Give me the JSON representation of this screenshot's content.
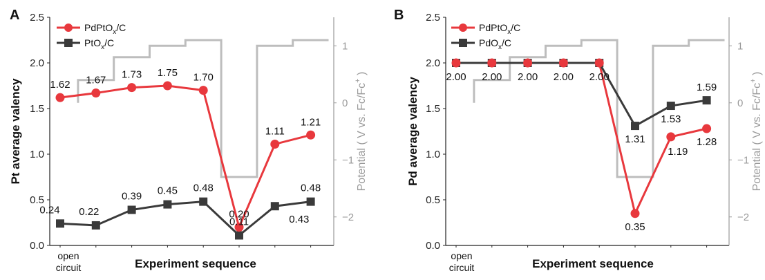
{
  "chart_data": [
    {
      "panel": "A",
      "type": "line",
      "xlabel": "Experiment sequence",
      "x_start_label": [
        "open",
        "circuit"
      ],
      "ylabel": "Pt average valency",
      "ylim": [
        0.0,
        2.5
      ],
      "yticks": [
        "0.0",
        "0.5",
        "1.0",
        "1.5",
        "2.0",
        "2.5"
      ],
      "y2label": "Potential ( V vs. Fc/Fc",
      "y2label_sup": "+",
      "y2label_end": ")",
      "y2lim": [
        -2.5,
        1.5
      ],
      "y2ticks": [
        "-2",
        "-1",
        "0",
        "1"
      ],
      "legend_position": "top-left",
      "x": [
        1,
        2,
        3,
        4,
        5,
        6,
        7,
        8
      ],
      "series": [
        {
          "name": "PdPtO",
          "name_sub": "x",
          "name_end": "/C",
          "color": "#e8383d",
          "marker": "circle",
          "values": [
            1.62,
            1.67,
            1.73,
            1.75,
            1.7,
            0.2,
            1.11,
            1.21
          ],
          "labels": [
            "1.62",
            "1.67",
            "1.73",
            "1.75",
            "1.70",
            "0.20",
            "1.11",
            "1.21"
          ]
        },
        {
          "name": "PtO",
          "name_sub": "x",
          "name_end": "/C",
          "color": "#3a3a3a",
          "marker": "square",
          "values": [
            0.24,
            0.22,
            0.39,
            0.45,
            0.48,
            0.11,
            0.43,
            0.48
          ],
          "labels": [
            "0.24",
            "0.22",
            "0.39",
            "0.45",
            "0.48",
            "0.11",
            "0.43",
            "0.48"
          ]
        }
      ],
      "potential_profile": {
        "color": "#bdbdbd",
        "steps": [
          {
            "x0": 1.5,
            "x1": 2.5,
            "v": 0.4
          },
          {
            "x0": 2.5,
            "x1": 3.5,
            "v": 0.8
          },
          {
            "x0": 3.5,
            "x1": 4.5,
            "v": 1.0
          },
          {
            "x0": 4.5,
            "x1": 5.5,
            "v": 1.1
          },
          {
            "x0": 5.5,
            "x1": 6.0,
            "v": -1.3
          },
          {
            "x0": 6.0,
            "x1": 6.5,
            "v": -1.3
          },
          {
            "x0": 6.5,
            "x1": 7.5,
            "v": 1.0
          },
          {
            "x0": 7.5,
            "x1": 8.5,
            "v": 1.1
          }
        ],
        "start": {
          "x": 1.5,
          "v": 0.0
        }
      }
    },
    {
      "panel": "B",
      "type": "line",
      "xlabel": "Experiment sequence",
      "x_start_label": [
        "open",
        "circuit"
      ],
      "ylabel": "Pd average valency",
      "ylim": [
        0.0,
        2.5
      ],
      "yticks": [
        "0.0",
        "0.5",
        "1.0",
        "1.5",
        "2.0",
        "2.5"
      ],
      "y2label": "Potential ( V vs. Fc/Fc",
      "y2label_sup": "+",
      "y2label_end": ")",
      "y2lim": [
        -2.5,
        1.5
      ],
      "y2ticks": [
        "-2",
        "-1",
        "0",
        "1"
      ],
      "legend_position": "top-left",
      "x": [
        1,
        2,
        3,
        4,
        5,
        6,
        7,
        8
      ],
      "series": [
        {
          "name": "PdPtO",
          "name_sub": "x",
          "name_end": "/C",
          "color": "#e8383d",
          "marker": "circle",
          "values": [
            2.0,
            2.0,
            2.0,
            2.0,
            2.0,
            0.35,
            1.19,
            1.28
          ],
          "labels": [
            "2.00",
            "2.00",
            "2.00",
            "2.00",
            "2.00",
            "0.35",
            "1.19",
            "1.28"
          ]
        },
        {
          "name": "PdO",
          "name_sub": "x",
          "name_end": "/C",
          "color": "#3a3a3a",
          "marker": "square",
          "values": [
            2.0,
            2.0,
            2.0,
            2.0,
            2.0,
            1.31,
            1.53,
            1.59
          ],
          "labels": [
            "",
            "",
            "",
            "",
            "",
            "1.31",
            "1.53",
            "1.59"
          ]
        }
      ],
      "potential_profile": {
        "color": "#bdbdbd",
        "steps": [
          {
            "x0": 1.5,
            "x1": 2.5,
            "v": 0.4
          },
          {
            "x0": 2.5,
            "x1": 3.5,
            "v": 0.8
          },
          {
            "x0": 3.5,
            "x1": 4.5,
            "v": 1.0
          },
          {
            "x0": 4.5,
            "x1": 5.5,
            "v": 1.1
          },
          {
            "x0": 5.5,
            "x1": 6.0,
            "v": -1.3
          },
          {
            "x0": 6.0,
            "x1": 6.5,
            "v": -1.3
          },
          {
            "x0": 6.5,
            "x1": 7.5,
            "v": 1.0
          },
          {
            "x0": 7.5,
            "x1": 8.5,
            "v": 1.1
          }
        ],
        "start": {
          "x": 1.5,
          "v": 0.0
        }
      }
    }
  ]
}
